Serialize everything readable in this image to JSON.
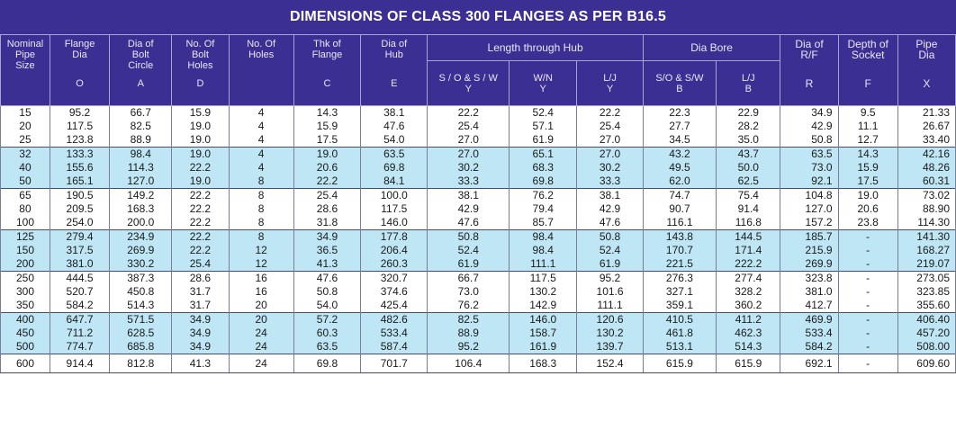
{
  "title": "DIMENSIONS OF CLASS 300 FLANGES AS PER  B16.5",
  "headers": {
    "nps": [
      "Nominal",
      "Pipe",
      "Size"
    ],
    "flange_dia": {
      "label": [
        "Flange",
        "Dia"
      ],
      "letter": "O"
    },
    "bolt_circle": {
      "label": [
        "Dia of",
        "Bolt",
        "Circle"
      ],
      "letter": "A"
    },
    "bolt_holes_dia": {
      "label": [
        "No. Of",
        "Bolt",
        "Holes"
      ],
      "letter": "D"
    },
    "no_holes": {
      "label": [
        "No. Of",
        "Holes"
      ],
      "letter": ""
    },
    "thk": {
      "label": [
        "Thk of",
        "Flange"
      ],
      "letter": "C"
    },
    "dia_hub": {
      "label": [
        "Dia of",
        "Hub"
      ],
      "letter": "E"
    },
    "length_hub": "Length through Hub",
    "length_sub": [
      {
        "label": "S / O & S / W",
        "letter": "Y"
      },
      {
        "label": "W/N",
        "letter": "Y"
      },
      {
        "label": "L/J",
        "letter": "Y"
      }
    ],
    "dia_bore": "Dia Bore",
    "bore_sub": [
      {
        "label": "S/O & S/W",
        "letter": "B"
      },
      {
        "label": "L/J",
        "letter": "B"
      }
    ],
    "dia_rf": {
      "label": [
        "Dia of",
        "R/F"
      ],
      "letter": "R"
    },
    "depth_socket": {
      "label": [
        "Depth of",
        "Socket"
      ],
      "letter": "F"
    },
    "pipe_dia": {
      "label": [
        "Pipe",
        "Dia"
      ],
      "letter": "X"
    }
  },
  "rows": [
    [
      "15",
      "95.2",
      "66.7",
      "15.9",
      "4",
      "14.3",
      "38.1",
      "22.2",
      "52.4",
      "22.2",
      "22.3",
      "22.9",
      "34.9",
      "9.5",
      "21.33"
    ],
    [
      "20",
      "117.5",
      "82.5",
      "19.0",
      "4",
      "15.9",
      "47.6",
      "25.4",
      "57.1",
      "25.4",
      "27.7",
      "28.2",
      "42.9",
      "11.1",
      "26.67"
    ],
    [
      "25",
      "123.8",
      "88.9",
      "19.0",
      "4",
      "17.5",
      "54.0",
      "27.0",
      "61.9",
      "27.0",
      "34.5",
      "35.0",
      "50.8",
      "12.7",
      "33.40"
    ],
    [
      "32",
      "133.3",
      "98.4",
      "19.0",
      "4",
      "19.0",
      "63.5",
      "27.0",
      "65.1",
      "27.0",
      "43.2",
      "43.7",
      "63.5",
      "14.3",
      "42.16"
    ],
    [
      "40",
      "155.6",
      "114.3",
      "22.2",
      "4",
      "20.6",
      "69.8",
      "30.2",
      "68.3",
      "30.2",
      "49.5",
      "50.0",
      "73.0",
      "15.9",
      "48.26"
    ],
    [
      "50",
      "165.1",
      "127.0",
      "19.0",
      "8",
      "22.2",
      "84.1",
      "33.3",
      "69.8",
      "33.3",
      "62.0",
      "62.5",
      "92.1",
      "17.5",
      "60.31"
    ],
    [
      "65",
      "190.5",
      "149.2",
      "22.2",
      "8",
      "25.4",
      "100.0",
      "38.1",
      "76.2",
      "38.1",
      "74.7",
      "75.4",
      "104.8",
      "19.0",
      "73.02"
    ],
    [
      "80",
      "209.5",
      "168.3",
      "22.2",
      "8",
      "28.6",
      "117.5",
      "42.9",
      "79.4",
      "42.9",
      "90.7",
      "91.4",
      "127.0",
      "20.6",
      "88.90"
    ],
    [
      "100",
      "254.0",
      "200.0",
      "22.2",
      "8",
      "31.8",
      "146.0",
      "47.6",
      "85.7",
      "47.6",
      "116.1",
      "116.8",
      "157.2",
      "23.8",
      "114.30"
    ],
    [
      "125",
      "279.4",
      "234.9",
      "22.2",
      "8",
      "34.9",
      "177.8",
      "50.8",
      "98.4",
      "50.8",
      "143.8",
      "144.5",
      "185.7",
      "-",
      "141.30"
    ],
    [
      "150",
      "317.5",
      "269.9",
      "22.2",
      "12",
      "36.5",
      "206.4",
      "52.4",
      "98.4",
      "52.4",
      "170.7",
      "171.4",
      "215.9",
      "-",
      "168.27"
    ],
    [
      "200",
      "381.0",
      "330.2",
      "25.4",
      "12",
      "41.3",
      "260.3",
      "61.9",
      "111.1",
      "61.9",
      "221.5",
      "222.2",
      "269.9",
      "-",
      "219.07"
    ],
    [
      "250",
      "444.5",
      "387.3",
      "28.6",
      "16",
      "47.6",
      "320.7",
      "66.7",
      "117.5",
      "95.2",
      "276.3",
      "277.4",
      "323.8",
      "-",
      "273.05"
    ],
    [
      "300",
      "520.7",
      "450.8",
      "31.7",
      "16",
      "50.8",
      "374.6",
      "73.0",
      "130.2",
      "101.6",
      "327.1",
      "328.2",
      "381.0",
      "-",
      "323.85"
    ],
    [
      "350",
      "584.2",
      "514.3",
      "31.7",
      "20",
      "54.0",
      "425.4",
      "76.2",
      "142.9",
      "111.1",
      "359.1",
      "360.2",
      "412.7",
      "-",
      "355.60"
    ],
    [
      "400",
      "647.7",
      "571.5",
      "34.9",
      "20",
      "57.2",
      "482.6",
      "82.5",
      "146.0",
      "120.6",
      "410.5",
      "411.2",
      "469.9",
      "-",
      "406.40"
    ],
    [
      "450",
      "711.2",
      "628.5",
      "34.9",
      "24",
      "60.3",
      "533.4",
      "88.9",
      "158.7",
      "130.2",
      "461.8",
      "462.3",
      "533.4",
      "-",
      "457.20"
    ],
    [
      "500",
      "774.7",
      "685.8",
      "34.9",
      "24",
      "63.5",
      "587.4",
      "95.2",
      "161.9",
      "139.7",
      "513.1",
      "514.3",
      "584.2",
      "-",
      "508.00"
    ],
    [
      "600",
      "914.4",
      "812.8",
      "41.3",
      "24",
      "69.8",
      "701.7",
      "106.4",
      "168.3",
      "152.4",
      "615.9",
      "615.9",
      "692.1",
      "-",
      "609.60"
    ]
  ],
  "colors": {
    "header": "#3c2f93",
    "band_blue": "#bfe6f4",
    "band_white": "#ffffff"
  }
}
